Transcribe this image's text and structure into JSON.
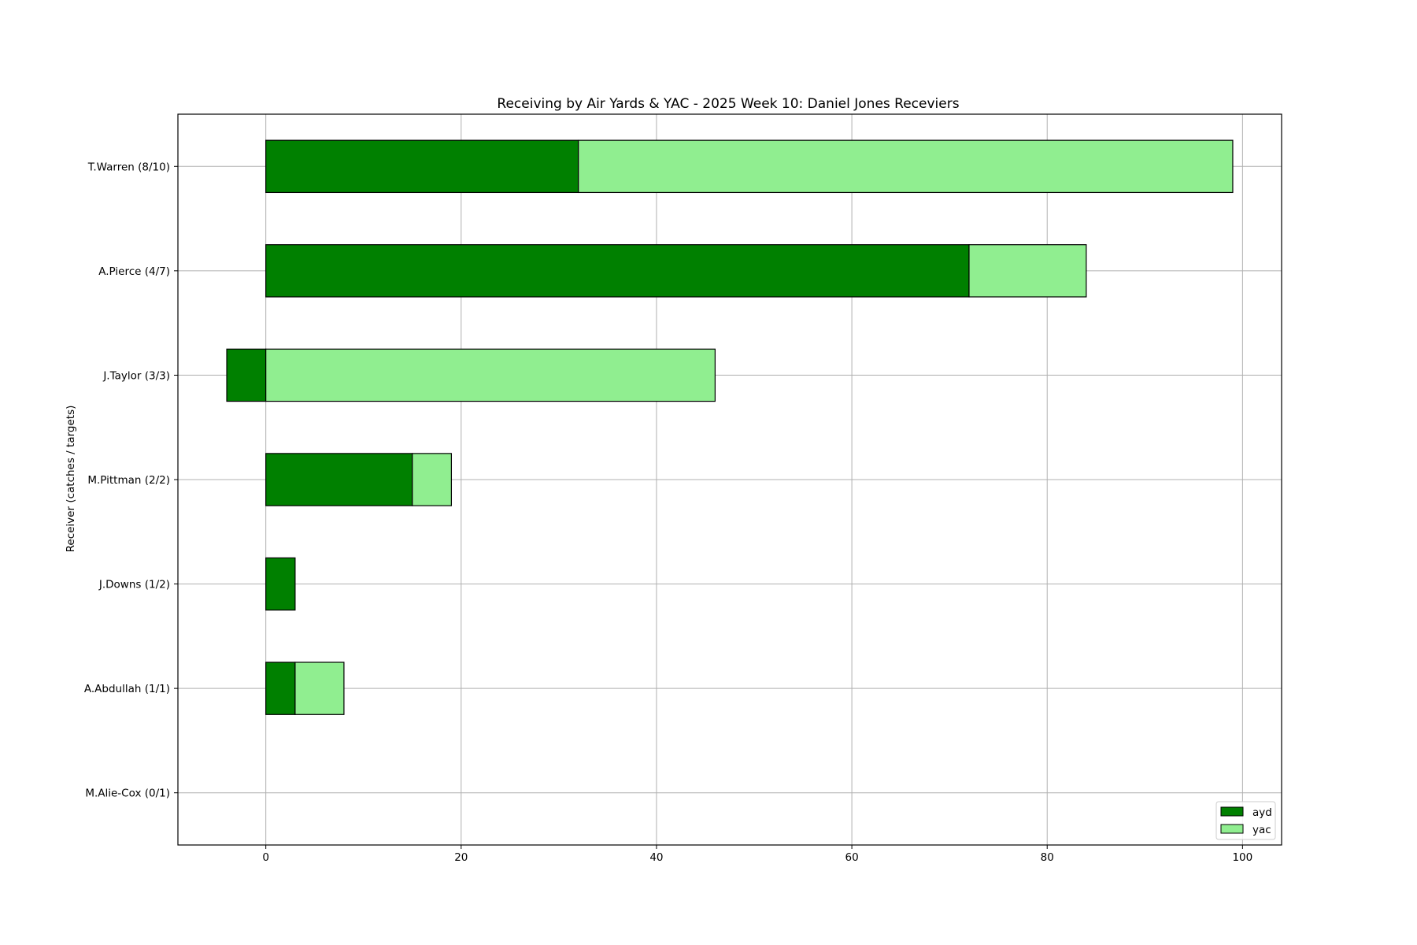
{
  "chart_data": {
    "type": "bar",
    "orientation": "horizontal",
    "stacked": true,
    "title": "Receiving by Air Yards & YAC - 2025 Week 10: Daniel Jones Receviers",
    "xlabel": "",
    "ylabel": "Receiver (catches / targets)",
    "xlim": [
      -9,
      104
    ],
    "xticks": [
      0,
      20,
      40,
      60,
      80,
      100
    ],
    "grid": true,
    "legend_position": "lower-right",
    "categories": [
      "T.Warren (8/10)",
      "A.Pierce (4/7)",
      "J.Taylor (3/3)",
      "M.Pittman (2/2)",
      "J.Downs (1/2)",
      "A.Abdullah (1/1)",
      "M.Alie-Cox (0/1)"
    ],
    "series": [
      {
        "name": "ayd",
        "color": "#008000",
        "values": [
          32,
          72,
          -4,
          15,
          3,
          3,
          0
        ]
      },
      {
        "name": "yac",
        "color": "#90ee90",
        "values": [
          67,
          12,
          46,
          4,
          0,
          5,
          0
        ]
      }
    ]
  }
}
